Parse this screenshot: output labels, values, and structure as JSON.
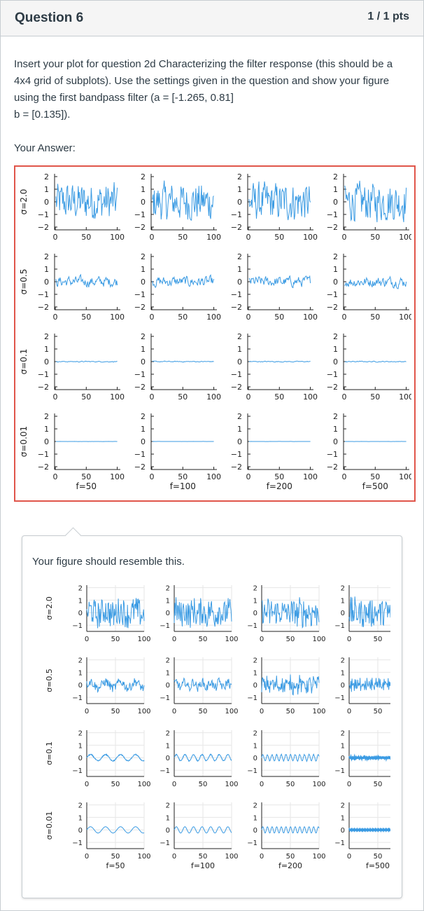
{
  "question": {
    "title": "Question 6",
    "points": "1 / 1 pts",
    "text_line1": "Insert your plot for question 2d Characterizing the filter response (this should be a 4x4 grid of subplots).  Use the settings given in the question and show your figure using the first bandpass filter (a = [-1.265, 0.81]",
    "text_line2": "b = [0.135])."
  },
  "answer": {
    "label": "Your Answer:"
  },
  "comment": {
    "text": "Your figure should resemble this."
  },
  "colors": {
    "plot_line": "#3b9be3",
    "answer_border": "#e0554a"
  },
  "figure_labels": {
    "row_labels": [
      "σ=2.0",
      "σ=0.5",
      "σ=0.1",
      "σ=0.01"
    ],
    "col_labels": [
      "f=50",
      "f=100",
      "f=200",
      "f=500"
    ],
    "xticks": [
      "0",
      "50",
      "100"
    ],
    "answer_yticks": [
      "2",
      "1",
      "0",
      "−1",
      "−2"
    ],
    "reference_yticks": [
      "2",
      "1",
      "0",
      "−1"
    ]
  },
  "chart_data": [
    {
      "type": "line",
      "title": "",
      "rows": [
        "σ=2.0",
        "σ=0.5",
        "σ=0.1",
        "σ=0.01"
      ],
      "columns": [
        "f=50",
        "f=100",
        "f=200",
        "f=500"
      ],
      "xlim": [
        0,
        100
      ],
      "ylim": [
        -2,
        2
      ],
      "x_ticks": [
        0,
        50,
        100
      ],
      "y_ticks": [
        -2,
        -1,
        0,
        1,
        2
      ],
      "grid": false,
      "legend": "none",
      "series_description": "Filtered noise; amplitude ~±2 for σ=2.0, ~±0.5 for σ=0.5, ~±0.05 for σ=0.1, ~0 for σ=0.01 in every column"
    },
    {
      "type": "line",
      "title": "",
      "rows": [
        "σ=2.0",
        "σ=0.5",
        "σ=0.1",
        "σ=0.01"
      ],
      "columns": [
        "f=50",
        "f=100",
        "f=200",
        "f=500"
      ],
      "xlim": [
        0,
        100
      ],
      "ylim": [
        -1.5,
        2.2
      ],
      "x_ticks": [
        0,
        50,
        100
      ],
      "y_ticks": [
        -1,
        0,
        1,
        2
      ],
      "grid": true,
      "legend": "none",
      "series_description": "Filtered sinusoid plus noise; rows σ=0.1 and σ=0.01 show sinusoids of amplitude ~0.25 with frequency increasing left to right"
    }
  ]
}
